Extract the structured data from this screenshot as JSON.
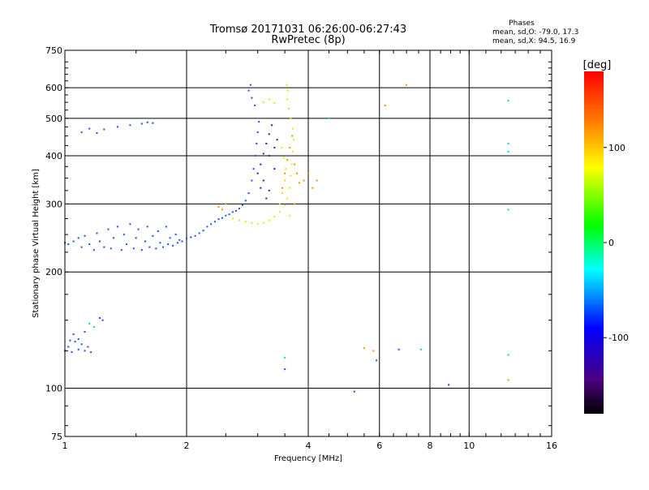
{
  "chart_data": {
    "type": "scatter",
    "title": "Tromsø 20171031 06:26:00-06:27:43",
    "subtitle": "RwPretec (8p)",
    "xlabel": "Frequency [MHz]",
    "ylabel": "Stationary phase Virtual Height [km]",
    "x_scale": "log",
    "y_scale": "log",
    "xlim": [
      1,
      16
    ],
    "ylim": [
      75,
      750
    ],
    "x_ticks": [
      1,
      2,
      4,
      6,
      8,
      10,
      16
    ],
    "y_ticks": [
      75,
      100,
      200,
      300,
      400,
      500,
      600,
      750
    ],
    "x_gridlines": [
      2,
      4,
      6,
      8,
      10
    ],
    "y_gridlines": [
      100,
      200,
      300,
      400,
      500,
      600
    ],
    "grid": true,
    "phase_stats": {
      "heading": "Phases",
      "line_o": "mean, sd,O: -79.0, 17.3",
      "line_x": "mean, sd,X: 94.5, 16.9"
    },
    "colorbar": {
      "label": "[deg]",
      "range": [
        -180,
        180
      ],
      "ticks": [
        100,
        0,
        -100
      ],
      "placement": "right"
    },
    "series": [
      {
        "component": "O",
        "color": "#1a4cff",
        "points": [
          [
            1.0,
            238
          ],
          [
            1.02,
            236
          ],
          [
            1.05,
            240
          ],
          [
            1.08,
            245
          ],
          [
            1.1,
            232
          ],
          [
            1.12,
            248
          ],
          [
            1.15,
            236
          ],
          [
            1.18,
            228
          ],
          [
            1.2,
            252
          ],
          [
            1.22,
            240
          ],
          [
            1.25,
            232
          ],
          [
            1.28,
            258
          ],
          [
            1.3,
            230
          ],
          [
            1.32,
            245
          ],
          [
            1.35,
            262
          ],
          [
            1.38,
            228
          ],
          [
            1.4,
            250
          ],
          [
            1.42,
            236
          ],
          [
            1.45,
            266
          ],
          [
            1.48,
            230
          ],
          [
            1.5,
            245
          ],
          [
            1.52,
            258
          ],
          [
            1.55,
            228
          ],
          [
            1.58,
            240
          ],
          [
            1.6,
            262
          ],
          [
            1.62,
            232
          ],
          [
            1.65,
            248
          ],
          [
            1.68,
            230
          ],
          [
            1.7,
            255
          ],
          [
            1.72,
            238
          ],
          [
            1.75,
            232
          ],
          [
            1.78,
            262
          ],
          [
            1.8,
            236
          ],
          [
            1.82,
            245
          ],
          [
            1.85,
            234
          ],
          [
            1.88,
            250
          ],
          [
            1.9,
            238
          ],
          [
            1.92,
            242
          ],
          [
            1.95,
            240
          ],
          [
            2.0,
            244
          ],
          [
            2.05,
            246
          ],
          [
            2.1,
            248
          ],
          [
            2.15,
            252
          ],
          [
            2.2,
            256
          ],
          [
            2.25,
            262
          ],
          [
            2.3,
            266
          ],
          [
            2.35,
            270
          ],
          [
            2.4,
            274
          ],
          [
            2.45,
            276
          ],
          [
            2.5,
            280
          ],
          [
            2.55,
            282
          ],
          [
            2.6,
            286
          ],
          [
            2.65,
            288
          ],
          [
            2.7,
            292
          ],
          [
            2.75,
            298
          ],
          [
            2.8,
            306
          ],
          [
            2.85,
            320
          ],
          [
            2.9,
            345
          ],
          [
            2.93,
            370
          ],
          [
            2.96,
            400
          ],
          [
            2.98,
            430
          ],
          [
            3.0,
            460
          ],
          [
            3.02,
            490
          ],
          [
            2.95,
            540
          ],
          [
            2.9,
            565
          ],
          [
            2.85,
            590
          ],
          [
            2.88,
            610
          ],
          [
            1.1,
            460
          ],
          [
            1.15,
            470
          ],
          [
            1.2,
            458
          ],
          [
            1.25,
            468
          ],
          [
            1.35,
            475
          ],
          [
            1.45,
            480
          ],
          [
            1.55,
            484
          ],
          [
            1.6,
            488
          ],
          [
            1.65,
            486
          ],
          [
            1.0,
            125
          ],
          [
            1.02,
            128
          ],
          [
            1.04,
            124
          ],
          [
            1.06,
            132
          ],
          [
            1.08,
            126
          ],
          [
            1.1,
            130
          ],
          [
            1.12,
            125
          ],
          [
            1.14,
            128
          ],
          [
            1.16,
            124
          ],
          [
            1.05,
            138
          ],
          [
            1.08,
            134
          ],
          [
            1.12,
            140
          ],
          [
            1.03,
            133
          ],
          [
            1.22,
            152
          ],
          [
            1.24,
            150
          ],
          [
            5.2,
            98
          ],
          [
            5.9,
            118
          ],
          [
            6.7,
            126
          ],
          [
            8.9,
            102
          ],
          [
            3.5,
            112
          ]
        ]
      },
      {
        "component": "O-deep",
        "color": "#3a0fb0",
        "points": [
          [
            3.0,
            360
          ],
          [
            3.05,
            380
          ],
          [
            3.1,
            405
          ],
          [
            3.15,
            430
          ],
          [
            3.2,
            455
          ],
          [
            3.25,
            480
          ],
          [
            3.05,
            330
          ],
          [
            3.1,
            345
          ],
          [
            3.2,
            400
          ],
          [
            3.3,
            370
          ],
          [
            3.3,
            420
          ],
          [
            3.35,
            440
          ],
          [
            3.15,
            310
          ],
          [
            3.2,
            325
          ]
        ]
      },
      {
        "component": "X",
        "color": "#e6e600",
        "points": [
          [
            2.6,
            275
          ],
          [
            2.7,
            272
          ],
          [
            2.8,
            270
          ],
          [
            2.9,
            268
          ],
          [
            3.0,
            266
          ],
          [
            3.1,
            268
          ],
          [
            3.2,
            272
          ],
          [
            3.3,
            278
          ],
          [
            3.4,
            286
          ],
          [
            3.5,
            298
          ],
          [
            3.55,
            310
          ],
          [
            3.6,
            330
          ],
          [
            3.62,
            355
          ],
          [
            3.64,
            380
          ],
          [
            3.66,
            410
          ],
          [
            3.68,
            440
          ],
          [
            3.66,
            470
          ],
          [
            3.62,
            500
          ],
          [
            3.58,
            530
          ],
          [
            3.55,
            560
          ],
          [
            3.56,
            590
          ],
          [
            3.54,
            610
          ],
          [
            3.4,
            300
          ],
          [
            3.45,
            320
          ],
          [
            3.5,
            345
          ],
          [
            3.52,
            370
          ],
          [
            3.48,
            395
          ],
          [
            3.44,
            420
          ],
          [
            3.6,
            280
          ],
          [
            3.1,
            550
          ],
          [
            3.2,
            560
          ],
          [
            3.3,
            548
          ]
        ]
      },
      {
        "component": "X-warm",
        "color": "#ff8a00",
        "points": [
          [
            3.45,
            330
          ],
          [
            3.5,
            360
          ],
          [
            3.55,
            390
          ],
          [
            3.6,
            420
          ],
          [
            3.65,
            450
          ],
          [
            3.7,
            380
          ],
          [
            3.75,
            360
          ],
          [
            3.8,
            340
          ],
          [
            3.7,
            300
          ],
          [
            3.9,
            345
          ],
          [
            4.0,
            360
          ],
          [
            4.1,
            330
          ],
          [
            4.2,
            345
          ],
          [
            2.4,
            295
          ],
          [
            2.45,
            290
          ],
          [
            2.5,
            300
          ],
          [
            5.8,
            125
          ],
          [
            5.5,
            127
          ],
          [
            6.2,
            540
          ],
          [
            7.0,
            610
          ],
          [
            12.5,
            105
          ]
        ]
      },
      {
        "component": "misc",
        "color": "#00d4d4",
        "points": [
          [
            12.5,
            430
          ],
          [
            12.5,
            410
          ],
          [
            12.5,
            290
          ],
          [
            12.5,
            122
          ],
          [
            12.5,
            555
          ],
          [
            3.5,
            120
          ],
          [
            4.5,
            500
          ],
          [
            7.6,
            126
          ],
          [
            1.18,
            144
          ],
          [
            1.15,
            147
          ]
        ]
      }
    ]
  }
}
